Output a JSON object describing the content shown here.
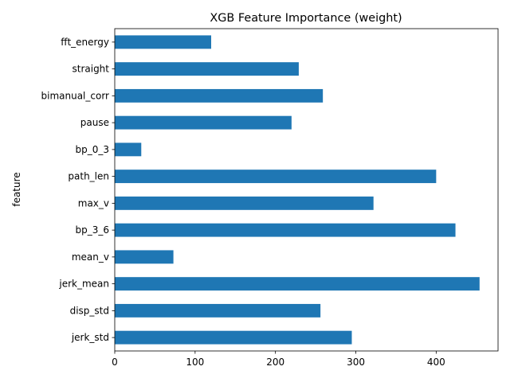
{
  "chart_data": {
    "type": "bar",
    "orientation": "horizontal",
    "title": "XGB Feature Importance (weight)",
    "xlabel": "",
    "ylabel": "feature",
    "categories": [
      "jerk_std",
      "disp_std",
      "jerk_mean",
      "mean_v",
      "bp_3_6",
      "max_v",
      "path_len",
      "bp_0_3",
      "pause",
      "bimanual_corr",
      "straight",
      "fft_energy"
    ],
    "values": [
      295,
      256,
      454,
      73,
      424,
      322,
      400,
      33,
      220,
      259,
      229,
      120
    ],
    "xlim": [
      0,
      477
    ],
    "xticks": [
      0,
      100,
      200,
      300,
      400
    ],
    "grid": false,
    "legend": "none",
    "bar_color": "#1f77b4"
  }
}
